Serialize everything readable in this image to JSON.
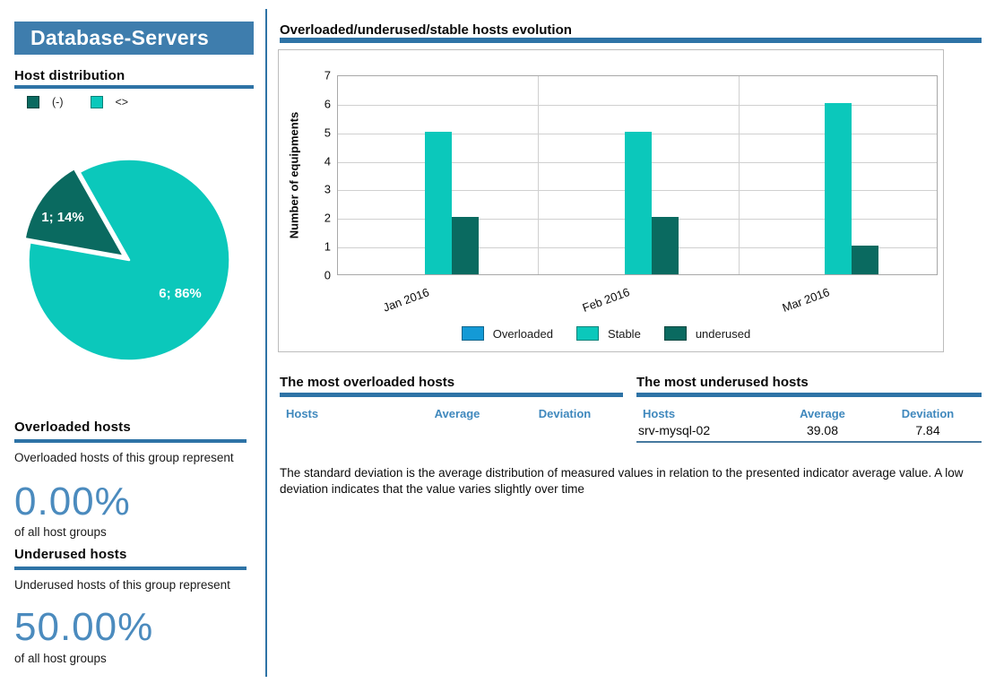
{
  "left_panel": {
    "group_title": "Database-Servers",
    "host_distribution": {
      "heading": "Host distribution",
      "legend": [
        {
          "label": "(-)",
          "color": "#0a6a60"
        },
        {
          "label": "<>",
          "color": "#0bc8bb"
        }
      ]
    },
    "overloaded_section": {
      "heading": "Overloaded hosts",
      "description": "Overloaded hosts of this group represent",
      "percent": "0.00%",
      "caption": "of all host groups"
    },
    "underused_section": {
      "heading": "Underused hosts",
      "description": "Underused hosts of this group represent",
      "percent": "50.00%",
      "caption": "of all host groups"
    }
  },
  "main": {
    "chart_title": "Overloaded/underused/stable hosts evolution",
    "overloaded_table": {
      "title": "The most overloaded hosts",
      "columns": [
        "Hosts",
        "Average",
        "Deviation"
      ],
      "rows": []
    },
    "underused_table": {
      "title": "The most underused hosts",
      "columns": [
        "Hosts",
        "Average",
        "Deviation"
      ],
      "rows": [
        [
          "srv-mysql-02",
          "39.08",
          "7.84"
        ]
      ]
    },
    "note": "The standard deviation is the average distribution of measured values in relation to the presented indicator average value. A low  deviation indicates that the value varies slightly over time"
  },
  "colors": {
    "accent_blue": "#2e73a6",
    "header_bg": "#3e7dad",
    "percent_blue": "#4b8bbe",
    "table_header_blue": "#3f88bd",
    "overloaded": "#149ad6",
    "stable": "#0bc8bb",
    "underused": "#0a6a60"
  },
  "chart_data": [
    {
      "type": "bar",
      "title": "Overloaded/underused/stable hosts evolution",
      "categories": [
        "Jan 2016",
        "Feb 2016",
        "Mar 2016"
      ],
      "series": [
        {
          "name": "Overloaded",
          "color": "#149ad6",
          "values": [
            0,
            0,
            0
          ]
        },
        {
          "name": "Stable",
          "color": "#0bc8bb",
          "values": [
            5,
            5,
            6
          ]
        },
        {
          "name": "underused",
          "color": "#0a6a60",
          "values": [
            2,
            2,
            1
          ]
        }
      ],
      "xlabel": "",
      "ylabel": "Number of equipments",
      "ylim": [
        0,
        7
      ],
      "yticks": [
        0,
        1,
        2,
        3,
        4,
        5,
        6,
        7
      ],
      "grid": true,
      "legend_position": "bottom"
    },
    {
      "type": "pie",
      "title": "Host distribution",
      "start_angle": 119.5,
      "slices": [
        {
          "label": "1; 14%",
          "value": 1,
          "pct": 14,
          "color": "#0a6a60",
          "exploded": true
        },
        {
          "label": "6; 86%",
          "value": 6,
          "pct": 86,
          "color": "#0bc8bb",
          "exploded": false
        }
      ]
    }
  ]
}
